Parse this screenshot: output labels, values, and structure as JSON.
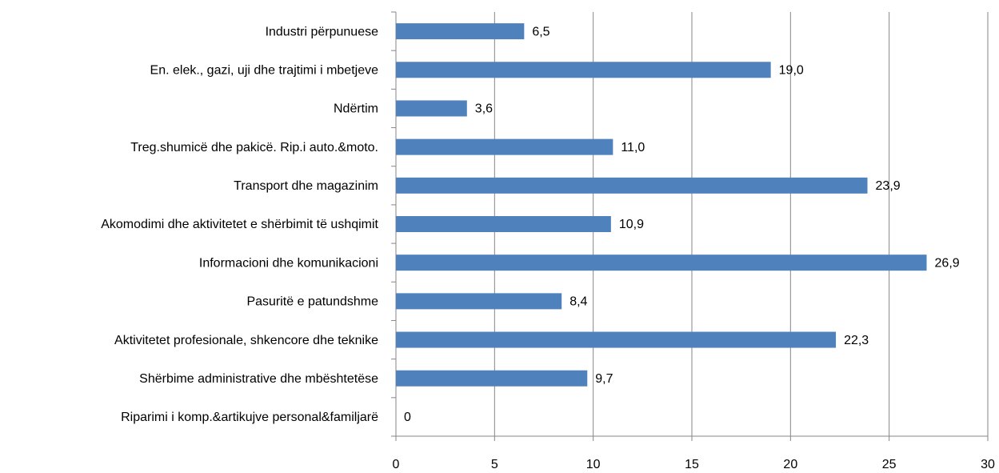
{
  "chart_data": {
    "type": "bar",
    "orientation": "horizontal",
    "categories": [
      "Industri përpunuese",
      "En. elek., gazi, uji dhe trajtimi i mbetjeve",
      "Ndërtim",
      "Treg.shumicë dhe pakicë. Rip.i auto.&moto.",
      "Transport dhe magazinim",
      "Akomodimi dhe aktivitetet e shërbimit të ushqimit",
      "Informacioni dhe komunikacioni",
      "Pasuritë e patundshme",
      "Aktivitetet profesionale, shkencore dhe teknike",
      "Shërbime administrative dhe mbështetëse",
      "Riparimi i komp.&artikujve personal&familjarë"
    ],
    "values": [
      6.5,
      19.0,
      3.6,
      11.0,
      23.9,
      10.9,
      26.9,
      8.4,
      22.3,
      9.7,
      0
    ],
    "value_labels": [
      "6,5",
      "19,0",
      "3,6",
      "11,0",
      "23,9",
      "10,9",
      "26,9",
      "8,4",
      "22,3",
      "9,7",
      "0"
    ],
    "color": "#4f81bd",
    "xlim": [
      0,
      30
    ],
    "xticks": [
      0,
      5,
      10,
      15,
      20,
      25,
      30
    ],
    "grid": true
  }
}
